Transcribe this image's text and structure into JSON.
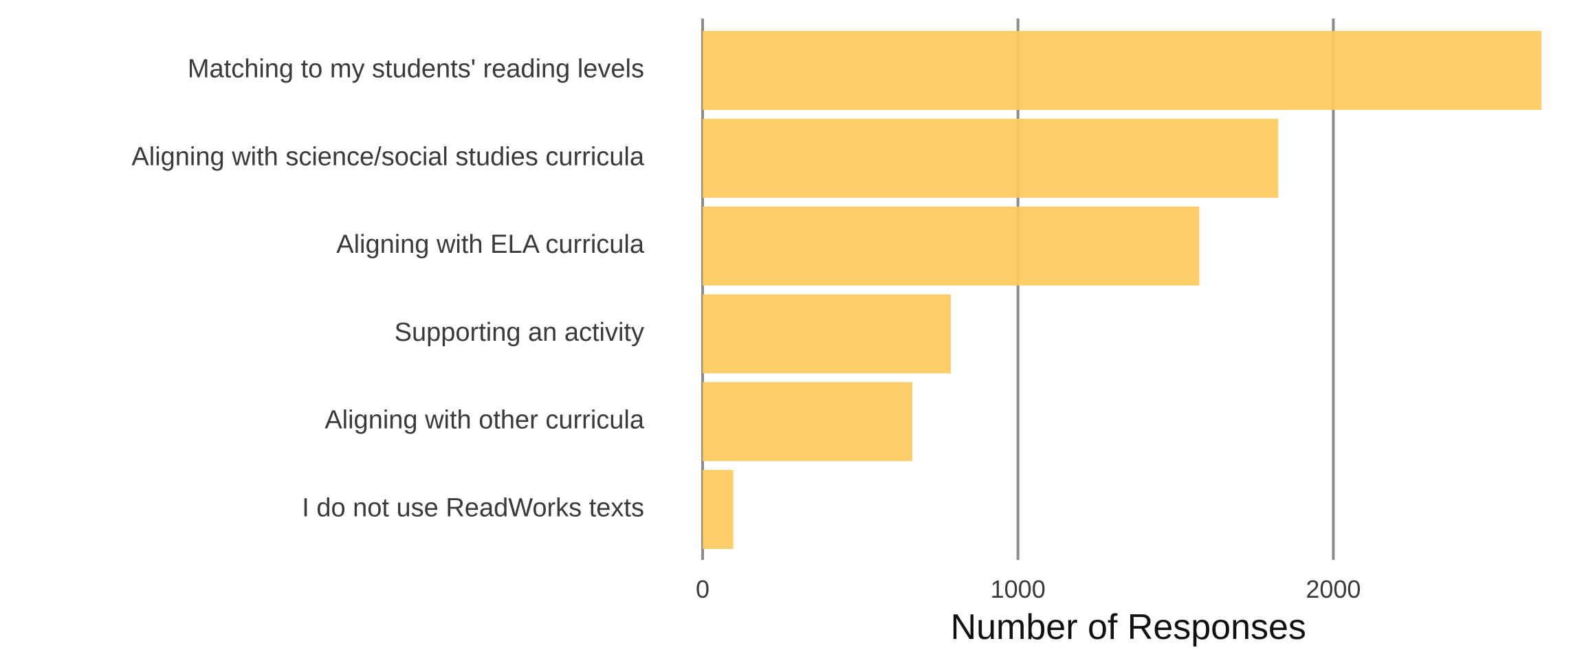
{
  "chart_data": {
    "type": "bar",
    "orientation": "horizontal",
    "categories": [
      "Matching to my students' reading levels",
      "Aligning with science/social studies curricula",
      "Aligning with ELA curricula",
      "Supporting an activity",
      "Aligning with other curricula",
      "I do not use ReadWorks texts"
    ],
    "values": [
      2660,
      1825,
      1575,
      787,
      665,
      97
    ],
    "title": "",
    "xlabel": "Number of Responses",
    "ylabel": "",
    "xlim": [
      0,
      2700
    ],
    "xticks": [
      0,
      1000,
      2000
    ],
    "xtick_labels": [
      "0",
      "1000",
      "2000"
    ],
    "grid": "vertical major lines only",
    "legend": "none",
    "bar_color": "#FDC95E",
    "gridline_color": "#8C8C8C"
  }
}
